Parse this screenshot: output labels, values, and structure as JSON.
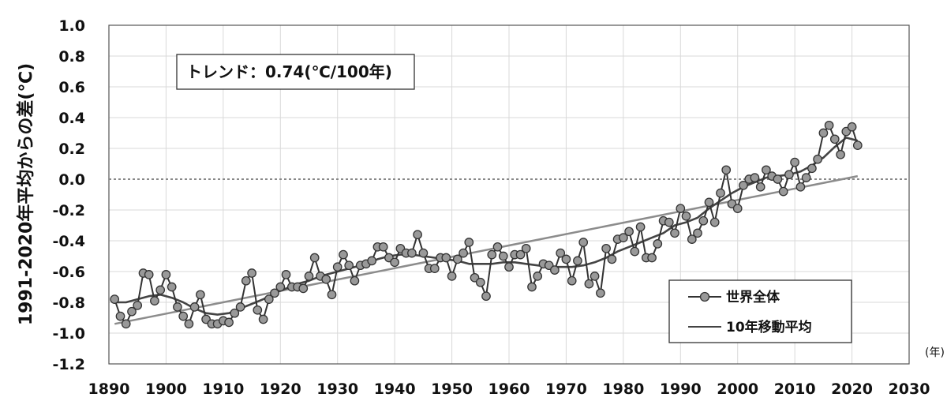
{
  "chart_data": {
    "type": "line",
    "ylabel": "1991-2020年平均からの差(℃)",
    "x_unit": "(年)",
    "xlim": [
      1890,
      2030
    ],
    "ylim": [
      -1.2,
      1.0
    ],
    "x_ticks": [
      1890,
      1900,
      1910,
      1920,
      1930,
      1940,
      1950,
      1960,
      1970,
      1980,
      1990,
      2000,
      2010,
      2020,
      2030
    ],
    "y_ticks": [
      "1.0",
      "0.8",
      "0.6",
      "0.4",
      "0.2",
      "0.0",
      "-0.2",
      "-0.4",
      "-0.6",
      "-0.8",
      "-1.0",
      "-1.2"
    ],
    "grid": true,
    "annotation": "トレンド：0.74(℃/100年)",
    "legend_position": "bottom-right",
    "series": [
      {
        "name": "世界全体",
        "color": "#333333",
        "marker": "circle",
        "marker_fill": "#999999",
        "x_start": 1891,
        "values": [
          -0.78,
          -0.89,
          -0.94,
          -0.86,
          -0.82,
          -0.61,
          -0.62,
          -0.79,
          -0.72,
          -0.62,
          -0.7,
          -0.83,
          -0.89,
          -0.94,
          -0.83,
          -0.75,
          -0.91,
          -0.94,
          -0.94,
          -0.92,
          -0.93,
          -0.87,
          -0.83,
          -0.66,
          -0.61,
          -0.85,
          -0.91,
          -0.78,
          -0.74,
          -0.7,
          -0.62,
          -0.7,
          -0.7,
          -0.71,
          -0.63,
          -0.51,
          -0.63,
          -0.65,
          -0.75,
          -0.57,
          -0.49,
          -0.56,
          -0.66,
          -0.56,
          -0.55,
          -0.53,
          -0.44,
          -0.44,
          -0.51,
          -0.54,
          -0.45,
          -0.48,
          -0.48,
          -0.36,
          -0.48,
          -0.58,
          -0.58,
          -0.51,
          -0.51,
          -0.63,
          -0.52,
          -0.48,
          -0.41,
          -0.64,
          -0.67,
          -0.76,
          -0.49,
          -0.44,
          -0.5,
          -0.57,
          -0.49,
          -0.49,
          -0.45,
          -0.7,
          -0.63,
          -0.55,
          -0.56,
          -0.59,
          -0.48,
          -0.52,
          -0.66,
          -0.53,
          -0.41,
          -0.68,
          -0.63,
          -0.74,
          -0.45,
          -0.52,
          -0.39,
          -0.38,
          -0.34,
          -0.47,
          -0.31,
          -0.51,
          -0.51,
          -0.42,
          -0.27,
          -0.28,
          -0.35,
          -0.19,
          -0.24,
          -0.39,
          -0.35,
          -0.27,
          -0.15,
          -0.28,
          -0.09,
          0.06,
          -0.16,
          -0.19,
          -0.04,
          0.0,
          0.01,
          -0.05,
          0.06,
          0.02,
          0.0,
          -0.08,
          0.03,
          0.11,
          -0.05,
          0.01,
          0.07,
          0.13,
          0.3,
          0.35,
          0.26,
          0.16,
          0.31,
          0.34,
          0.22
        ]
      },
      {
        "name": "10年移動平均",
        "color": "#444444",
        "x": [
          1891,
          1893,
          1895,
          1897,
          1899,
          1901,
          1903,
          1905,
          1907,
          1909,
          1911,
          1913,
          1915,
          1917,
          1919,
          1921,
          1923,
          1925,
          1927,
          1929,
          1931,
          1933,
          1935,
          1937,
          1939,
          1941,
          1943,
          1945,
          1947,
          1949,
          1951,
          1953,
          1955,
          1957,
          1959,
          1961,
          1963,
          1965,
          1967,
          1969,
          1971,
          1973,
          1975,
          1977,
          1979,
          1981,
          1983,
          1985,
          1987,
          1989,
          1991,
          1993,
          1995,
          1997,
          1999,
          2001,
          2003,
          2005,
          2007,
          2009,
          2011,
          2013,
          2015,
          2017,
          2019,
          2021
        ],
        "values": [
          -0.8,
          -0.8,
          -0.78,
          -0.76,
          -0.75,
          -0.77,
          -0.8,
          -0.84,
          -0.87,
          -0.88,
          -0.87,
          -0.84,
          -0.81,
          -0.78,
          -0.74,
          -0.71,
          -0.68,
          -0.66,
          -0.63,
          -0.61,
          -0.59,
          -0.57,
          -0.55,
          -0.52,
          -0.5,
          -0.49,
          -0.49,
          -0.5,
          -0.51,
          -0.52,
          -0.53,
          -0.55,
          -0.55,
          -0.55,
          -0.54,
          -0.54,
          -0.55,
          -0.56,
          -0.57,
          -0.57,
          -0.57,
          -0.56,
          -0.54,
          -0.51,
          -0.47,
          -0.44,
          -0.41,
          -0.38,
          -0.35,
          -0.3,
          -0.28,
          -0.25,
          -0.19,
          -0.14,
          -0.09,
          -0.05,
          -0.02,
          0.01,
          0.02,
          0.03,
          0.05,
          0.09,
          0.14,
          0.21,
          0.27,
          0.25
        ]
      },
      {
        "name": "trend",
        "color": "#8c8c8c",
        "x": [
          1891,
          2021
        ],
        "values": [
          -0.94,
          0.02
        ]
      }
    ]
  }
}
